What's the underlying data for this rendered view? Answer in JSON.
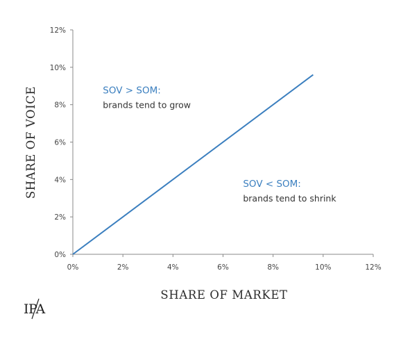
{
  "chart_data": {
    "type": "line",
    "xlabel": "SHARE OF MARKET",
    "ylabel": "SHARE OF VOICE",
    "xlim": [
      0,
      12
    ],
    "ylim": [
      0,
      12
    ],
    "x_ticks": [
      "0%",
      "2%",
      "4%",
      "6%",
      "8%",
      "10%",
      "12%"
    ],
    "y_ticks": [
      "0%",
      "2%",
      "4%",
      "6%",
      "8%",
      "10%",
      "12%"
    ],
    "grid": false,
    "series": [
      {
        "x": [
          0,
          9.6
        ],
        "y": [
          0,
          9.6
        ],
        "color": "#3b7fbf"
      }
    ],
    "annotations": [
      {
        "title": "SOV > SOM:",
        "text": "brands tend to grow",
        "x": 1.2,
        "y": 8.6
      },
      {
        "title": "SOV < SOM:",
        "text": "brands tend to shrink",
        "x": 6.8,
        "y": 3.6
      }
    ]
  },
  "logo": {
    "text": "IPA"
  }
}
